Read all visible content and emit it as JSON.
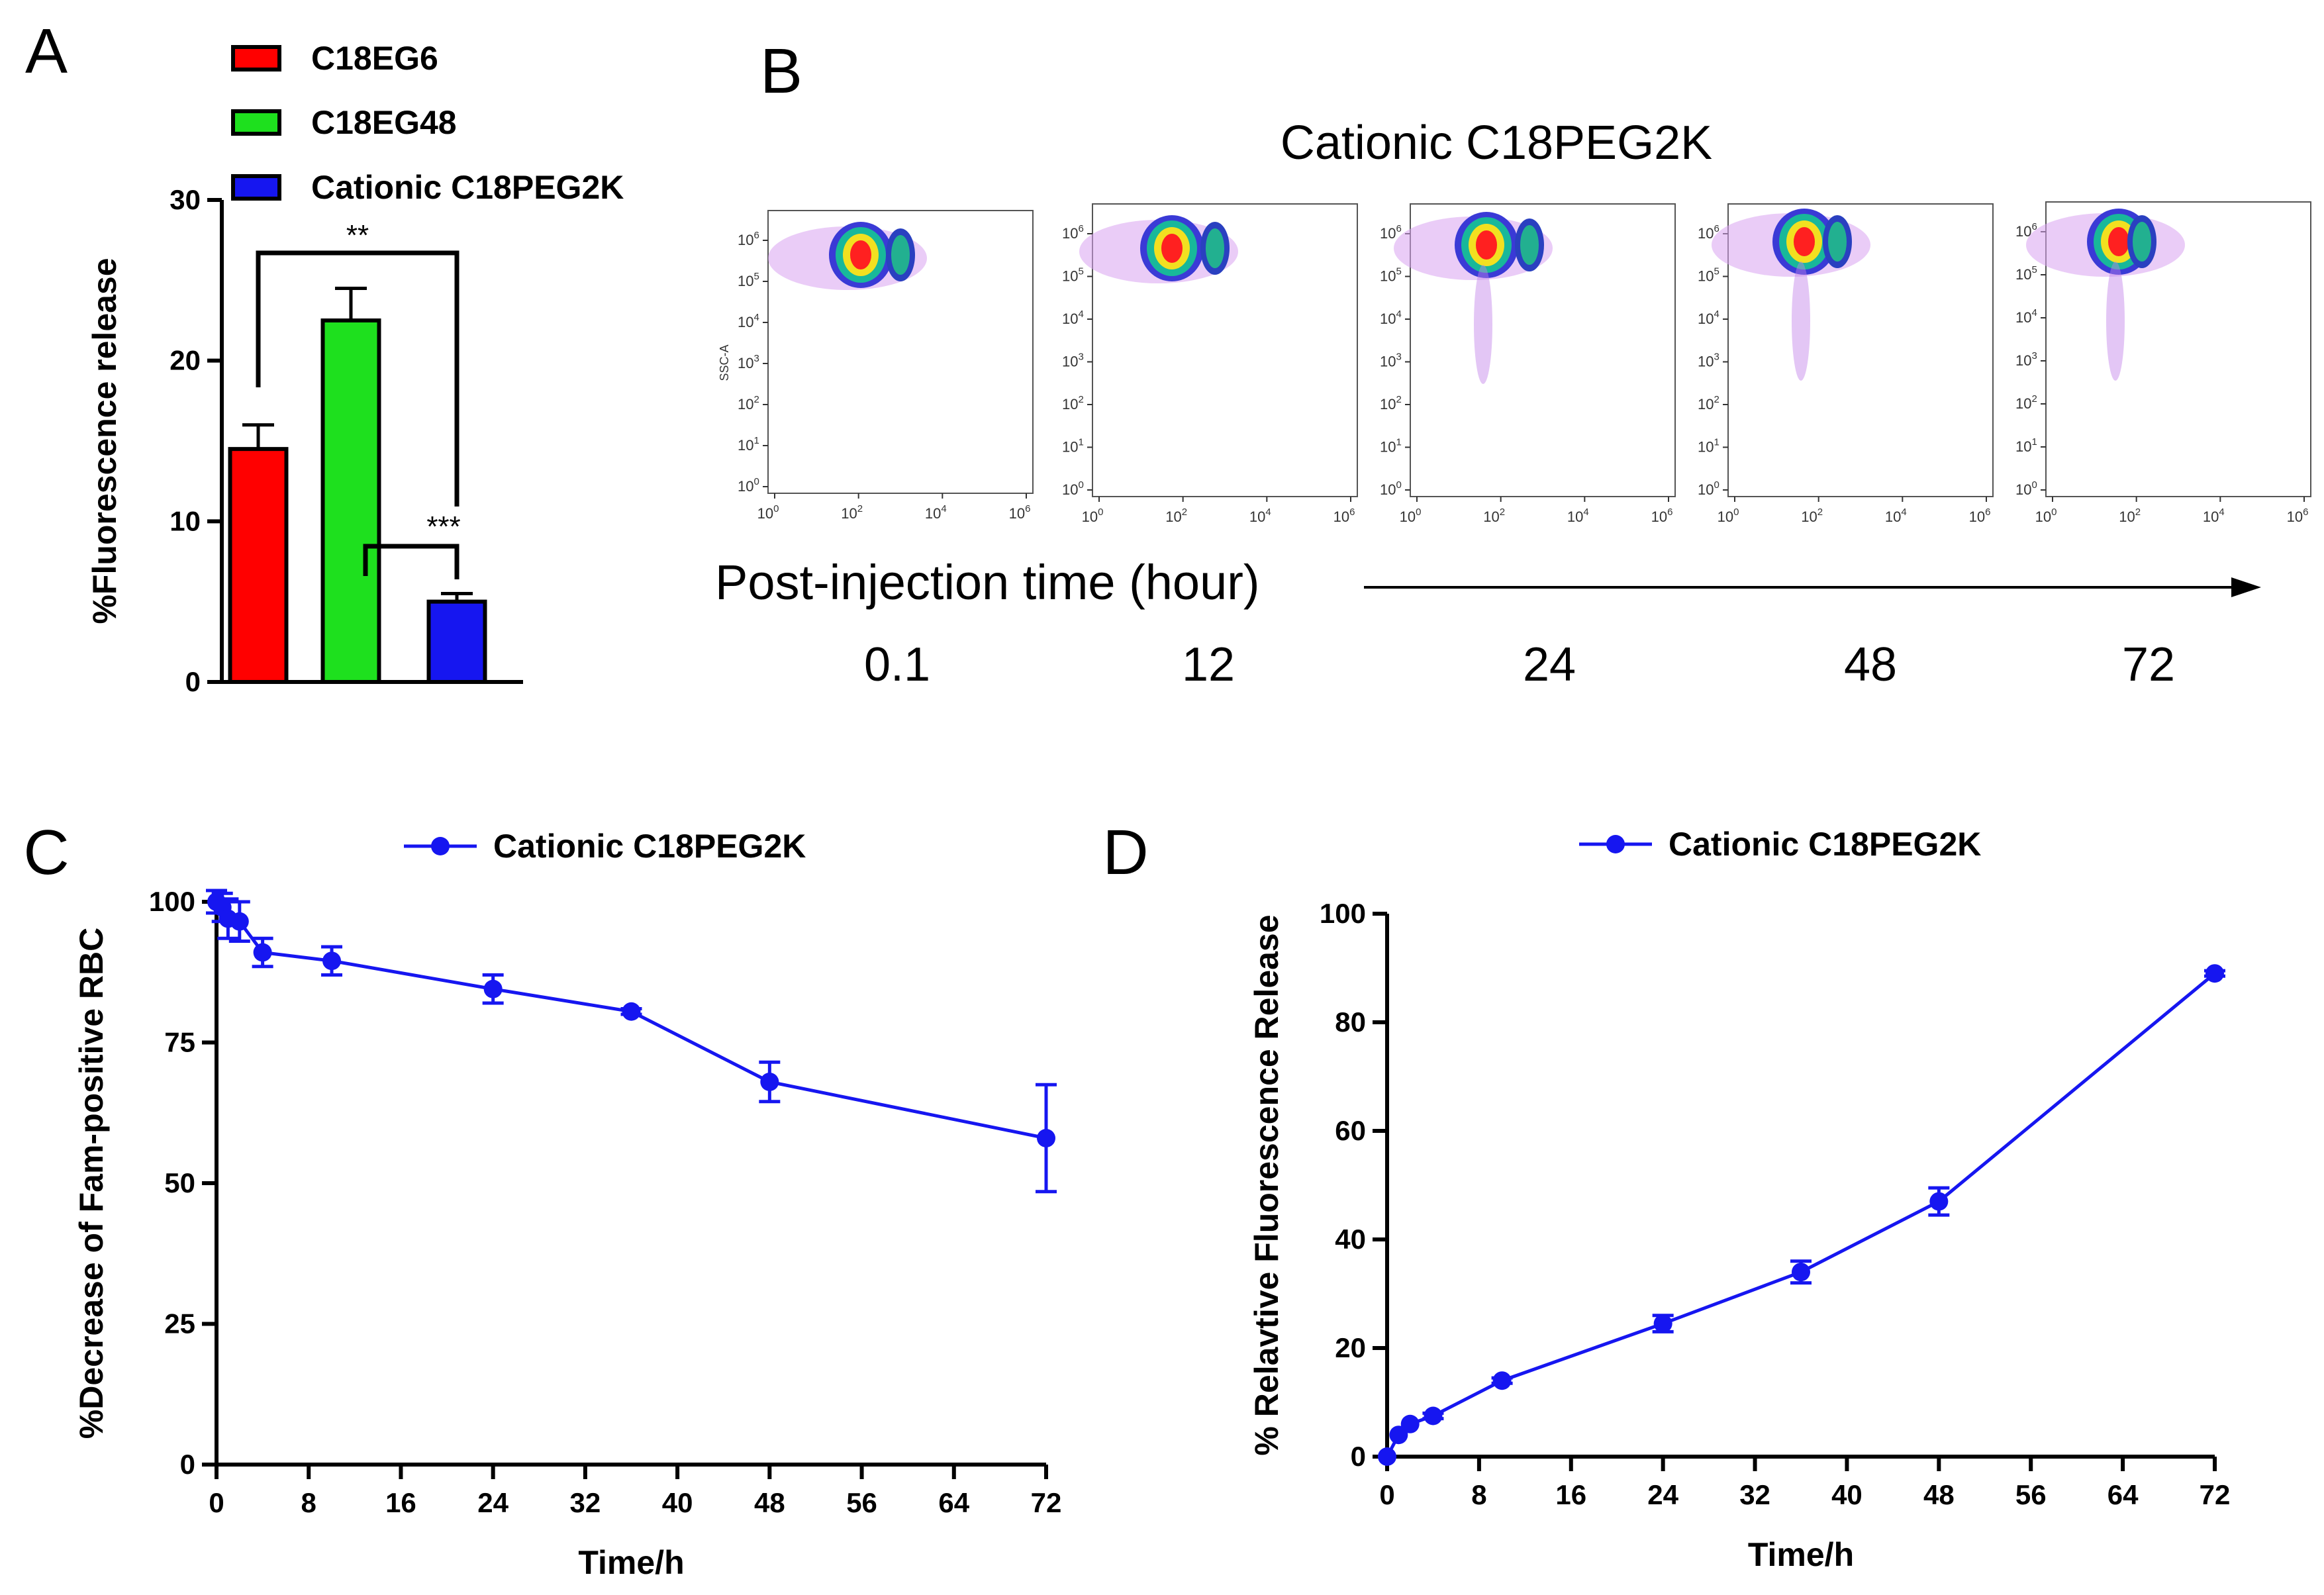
{
  "colors": {
    "red": "#ff0000",
    "green": "#1ee01e",
    "blue": "#1616f0",
    "axis": "#000000",
    "facs_frame": "#555555",
    "facs_tick": "#333333"
  },
  "panel_letters": [
    "A",
    "B",
    "C",
    "D"
  ],
  "chart_data": [
    {
      "type": "bar",
      "panel": "A",
      "ylabel": "%Fluorescence release",
      "ylim": [
        0,
        30
      ],
      "yticks": [
        0,
        10,
        20,
        30
      ],
      "categories": [
        "C18EG6",
        "C18EG48",
        "Cationic C18PEG2K"
      ],
      "values": [
        14.5,
        22.5,
        5.0
      ],
      "errors": [
        1.5,
        2.0,
        0.5
      ],
      "bar_colors": [
        "#ff0000",
        "#1ee01e",
        "#1616f0"
      ],
      "legend": [
        "C18EG6",
        "C18EG48",
        "Cationic C18PEG2K"
      ],
      "annotations": [
        {
          "from": 0,
          "to": 2,
          "label": "**"
        },
        {
          "from": 1,
          "to": 2,
          "label": "***"
        }
      ]
    },
    {
      "type": "scatter",
      "panel": "B",
      "title": "Cationic C18PEG2K",
      "xlabel": "Post-injection time (hour)",
      "ylabel": "SSC-A",
      "timepoints": [
        "0.1",
        "12",
        "24",
        "48",
        "72"
      ],
      "x_tick_exponents": [
        "0",
        "2",
        "4",
        "6"
      ],
      "y_tick_exponents": [
        "0",
        "1",
        "2",
        "3",
        "4",
        "5",
        "6"
      ],
      "description_note": "flow cytometry density plots, log scale"
    },
    {
      "type": "line",
      "panel": "C",
      "legend": "Cationic C18PEG2K",
      "xlabel": "Time/h",
      "ylabel": "%Decrease of Fam-positive RBC",
      "xlim": [
        0,
        72
      ],
      "ylim": [
        0,
        100
      ],
      "xticks": [
        0,
        8,
        16,
        24,
        32,
        40,
        48,
        56,
        64,
        72
      ],
      "yticks": [
        0,
        25,
        50,
        75,
        100
      ],
      "x": [
        0,
        0.5,
        1,
        2,
        4,
        10,
        24,
        36,
        48,
        72
      ],
      "y": [
        100,
        99,
        97,
        96.5,
        91,
        89.5,
        84.5,
        80.5,
        68,
        58
      ],
      "errors": [
        2,
        2.5,
        3.5,
        3.5,
        2.5,
        2.5,
        2.5,
        0.5,
        3.5,
        9.5
      ]
    },
    {
      "type": "line",
      "panel": "D",
      "legend": "Cationic C18PEG2K",
      "xlabel": "Time/h",
      "ylabel": "% Relavtive Fluorescence Release",
      "xlim": [
        0,
        72
      ],
      "ylim": [
        0,
        100
      ],
      "xticks": [
        0,
        8,
        16,
        24,
        32,
        40,
        48,
        56,
        64,
        72
      ],
      "yticks": [
        0,
        20,
        40,
        60,
        80,
        100
      ],
      "x": [
        0,
        1,
        2,
        4,
        10,
        24,
        36,
        48,
        72
      ],
      "y": [
        0,
        4,
        6,
        7.5,
        14,
        24.5,
        34,
        47,
        89
      ],
      "errors": [
        0,
        0,
        0,
        0.5,
        0.5,
        1.5,
        2,
        2.5,
        0.5
      ]
    }
  ]
}
